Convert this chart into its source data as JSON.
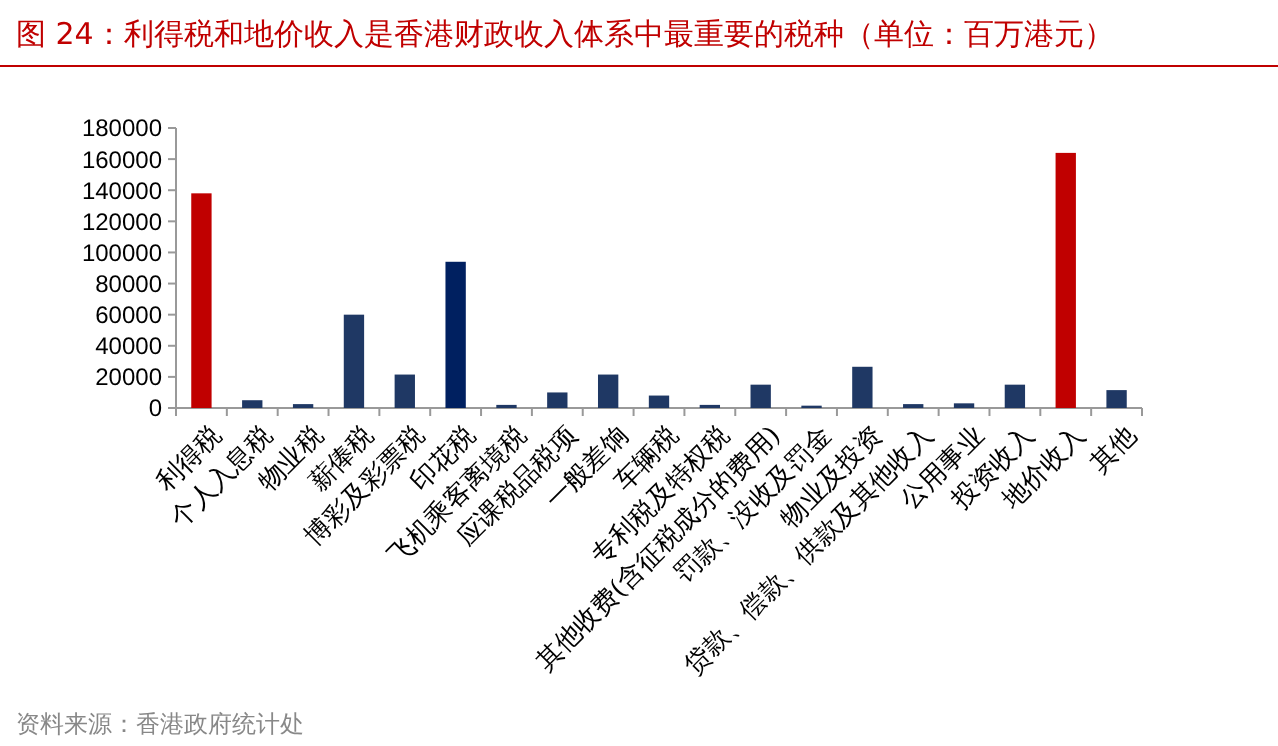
{
  "chart_data": {
    "type": "bar",
    "title": "图 24：利得税和地价收入是香港财政收入体系中最重要的税种（单位：百万港元）",
    "categories": [
      "利得税",
      "个人入息税",
      "物业税",
      "薪俸税",
      "博彩及彩票税",
      "印花税",
      "飞机乘客离境税",
      "应课税品税项",
      "一般差饷",
      "车辆税",
      "专利税及特权税",
      "其他收费(含征税成分的费用)",
      "罚款、没收及罚金",
      "物业及投资",
      "贷款、偿款、供款及其他收入",
      "公用事业",
      "投资收入",
      "地价收入",
      "其他"
    ],
    "values": [
      138000,
      5000,
      2500,
      60000,
      21500,
      94000,
      2000,
      10000,
      21500,
      8000,
      2000,
      15000,
      1500,
      26500,
      2500,
      3000,
      15000,
      164000,
      11500
    ],
    "colors": [
      "#c00000",
      "#1f3864",
      "#1f3864",
      "#1f3864",
      "#1f3864",
      "#002060",
      "#1f3864",
      "#1f3864",
      "#1f3864",
      "#1f3864",
      "#1f3864",
      "#1f3864",
      "#1f3864",
      "#1f3864",
      "#1f3864",
      "#1f3864",
      "#1f3864",
      "#c00000",
      "#1f3864"
    ],
    "ylim": [
      0,
      180000
    ],
    "yticks": [
      0,
      20000,
      40000,
      60000,
      80000,
      100000,
      120000,
      140000,
      160000,
      180000
    ],
    "grid": false,
    "annotations": [
      "资料来源：香港政府统计处"
    ]
  }
}
